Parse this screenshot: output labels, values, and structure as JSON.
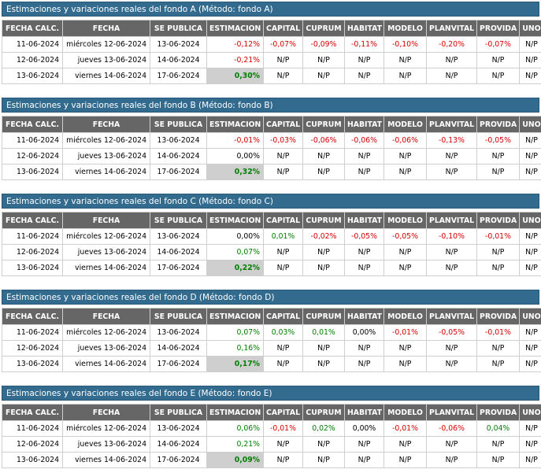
{
  "colors": {
    "header_bg": "#336b8e",
    "table_header_bg": "#666666",
    "negative": "#d40000",
    "positive": "#008000",
    "estimate_highlight": "#cfcfcf"
  },
  "columns": [
    "FECHA CALC.",
    "FECHA",
    "SE PUBLICA",
    "ESTIMACION",
    "CAPITAL",
    "CUPRUM",
    "HABITAT",
    "MODELO",
    "PLANVITAL",
    "PROVIDA",
    "UNO"
  ],
  "funds": [
    {
      "title": "Estimaciones y variaciones reales del fondo A (Método: fondo A)",
      "rows": [
        {
          "fecha_calc": "11-06-2024",
          "fecha": "miércoles 12-06-2024",
          "se_publica": "13-06-2024",
          "cells": [
            "-0,12%",
            "-0,07%",
            "-0,09%",
            "-0,11%",
            "-0,10%",
            "-0,20%",
            "-0,07%",
            "N/P"
          ],
          "tones": [
            "neg",
            "neg",
            "neg",
            "neg",
            "neg",
            "neg",
            "neg",
            "zero"
          ],
          "est_bold": false
        },
        {
          "fecha_calc": "12-06-2024",
          "fecha": "jueves 13-06-2024",
          "se_publica": "14-06-2024",
          "cells": [
            "-0,21%",
            "N/P",
            "N/P",
            "N/P",
            "N/P",
            "N/P",
            "N/P",
            "N/P"
          ],
          "tones": [
            "neg",
            "zero",
            "zero",
            "zero",
            "zero",
            "zero",
            "zero",
            "zero"
          ],
          "est_bold": false
        },
        {
          "fecha_calc": "13-06-2024",
          "fecha": "viernes 14-06-2024",
          "se_publica": "17-06-2024",
          "cells": [
            "0,30%",
            "N/P",
            "N/P",
            "N/P",
            "N/P",
            "N/P",
            "N/P",
            "N/P"
          ],
          "tones": [
            "pos",
            "zero",
            "zero",
            "zero",
            "zero",
            "zero",
            "zero",
            "zero"
          ],
          "est_bold": true
        }
      ]
    },
    {
      "title": "Estimaciones y variaciones reales del fondo B (Método: fondo B)",
      "rows": [
        {
          "fecha_calc": "11-06-2024",
          "fecha": "miércoles 12-06-2024",
          "se_publica": "13-06-2024",
          "cells": [
            "-0,01%",
            "-0,03%",
            "-0,06%",
            "-0,06%",
            "-0,06%",
            "-0,13%",
            "-0,05%",
            "N/P"
          ],
          "tones": [
            "neg",
            "neg",
            "neg",
            "neg",
            "neg",
            "neg",
            "neg",
            "zero"
          ],
          "est_bold": false
        },
        {
          "fecha_calc": "12-06-2024",
          "fecha": "jueves 13-06-2024",
          "se_publica": "14-06-2024",
          "cells": [
            "0,00%",
            "N/P",
            "N/P",
            "N/P",
            "N/P",
            "N/P",
            "N/P",
            "N/P"
          ],
          "tones": [
            "zero",
            "zero",
            "zero",
            "zero",
            "zero",
            "zero",
            "zero",
            "zero"
          ],
          "est_bold": false
        },
        {
          "fecha_calc": "13-06-2024",
          "fecha": "viernes 14-06-2024",
          "se_publica": "17-06-2024",
          "cells": [
            "0,32%",
            "N/P",
            "N/P",
            "N/P",
            "N/P",
            "N/P",
            "N/P",
            "N/P"
          ],
          "tones": [
            "pos",
            "zero",
            "zero",
            "zero",
            "zero",
            "zero",
            "zero",
            "zero"
          ],
          "est_bold": true
        }
      ]
    },
    {
      "title": "Estimaciones y variaciones reales del fondo C (Método: fondo C)",
      "rows": [
        {
          "fecha_calc": "11-06-2024",
          "fecha": "miércoles 12-06-2024",
          "se_publica": "13-06-2024",
          "cells": [
            "0,00%",
            "0,01%",
            "-0,02%",
            "-0,05%",
            "-0,05%",
            "-0,10%",
            "-0,01%",
            "N/P"
          ],
          "tones": [
            "zero",
            "pos",
            "neg",
            "neg",
            "neg",
            "neg",
            "neg",
            "zero"
          ],
          "est_bold": false
        },
        {
          "fecha_calc": "12-06-2024",
          "fecha": "jueves 13-06-2024",
          "se_publica": "14-06-2024",
          "cells": [
            "0,07%",
            "N/P",
            "N/P",
            "N/P",
            "N/P",
            "N/P",
            "N/P",
            "N/P"
          ],
          "tones": [
            "pos",
            "zero",
            "zero",
            "zero",
            "zero",
            "zero",
            "zero",
            "zero"
          ],
          "est_bold": false
        },
        {
          "fecha_calc": "13-06-2024",
          "fecha": "viernes 14-06-2024",
          "se_publica": "17-06-2024",
          "cells": [
            "0,22%",
            "N/P",
            "N/P",
            "N/P",
            "N/P",
            "N/P",
            "N/P",
            "N/P"
          ],
          "tones": [
            "pos",
            "zero",
            "zero",
            "zero",
            "zero",
            "zero",
            "zero",
            "zero"
          ],
          "est_bold": true
        }
      ]
    },
    {
      "title": "Estimaciones y variaciones reales del fondo D (Método: fondo D)",
      "rows": [
        {
          "fecha_calc": "11-06-2024",
          "fecha": "miércoles 12-06-2024",
          "se_publica": "13-06-2024",
          "cells": [
            "0,07%",
            "0,03%",
            "0,01%",
            "0,00%",
            "-0,01%",
            "-0,05%",
            "-0,01%",
            "N/P"
          ],
          "tones": [
            "pos",
            "pos",
            "pos",
            "zero",
            "neg",
            "neg",
            "neg",
            "zero"
          ],
          "est_bold": false
        },
        {
          "fecha_calc": "12-06-2024",
          "fecha": "jueves 13-06-2024",
          "se_publica": "14-06-2024",
          "cells": [
            "0,16%",
            "N/P",
            "N/P",
            "N/P",
            "N/P",
            "N/P",
            "N/P",
            "N/P"
          ],
          "tones": [
            "pos",
            "zero",
            "zero",
            "zero",
            "zero",
            "zero",
            "zero",
            "zero"
          ],
          "est_bold": false
        },
        {
          "fecha_calc": "13-06-2024",
          "fecha": "viernes 14-06-2024",
          "se_publica": "17-06-2024",
          "cells": [
            "0,17%",
            "N/P",
            "N/P",
            "N/P",
            "N/P",
            "N/P",
            "N/P",
            "N/P"
          ],
          "tones": [
            "pos",
            "zero",
            "zero",
            "zero",
            "zero",
            "zero",
            "zero",
            "zero"
          ],
          "est_bold": true
        }
      ]
    },
    {
      "title": "Estimaciones y variaciones reales del fondo E (Método: fondo E)",
      "rows": [
        {
          "fecha_calc": "11-06-2024",
          "fecha": "miércoles 12-06-2024",
          "se_publica": "13-06-2024",
          "cells": [
            "0,06%",
            "-0,01%",
            "0,02%",
            "0,00%",
            "-0,01%",
            "-0,06%",
            "0,04%",
            "N/P"
          ],
          "tones": [
            "pos",
            "neg",
            "pos",
            "zero",
            "neg",
            "neg",
            "pos",
            "zero"
          ],
          "est_bold": false
        },
        {
          "fecha_calc": "12-06-2024",
          "fecha": "jueves 13-06-2024",
          "se_publica": "14-06-2024",
          "cells": [
            "0,21%",
            "N/P",
            "N/P",
            "N/P",
            "N/P",
            "N/P",
            "N/P",
            "N/P"
          ],
          "tones": [
            "pos",
            "zero",
            "zero",
            "zero",
            "zero",
            "zero",
            "zero",
            "zero"
          ],
          "est_bold": false
        },
        {
          "fecha_calc": "13-06-2024",
          "fecha": "viernes 14-06-2024",
          "se_publica": "17-06-2024",
          "cells": [
            "0,09%",
            "N/P",
            "N/P",
            "N/P",
            "N/P",
            "N/P",
            "N/P",
            "N/P"
          ],
          "tones": [
            "pos",
            "zero",
            "zero",
            "zero",
            "zero",
            "zero",
            "zero",
            "zero"
          ],
          "est_bold": true
        }
      ]
    }
  ]
}
